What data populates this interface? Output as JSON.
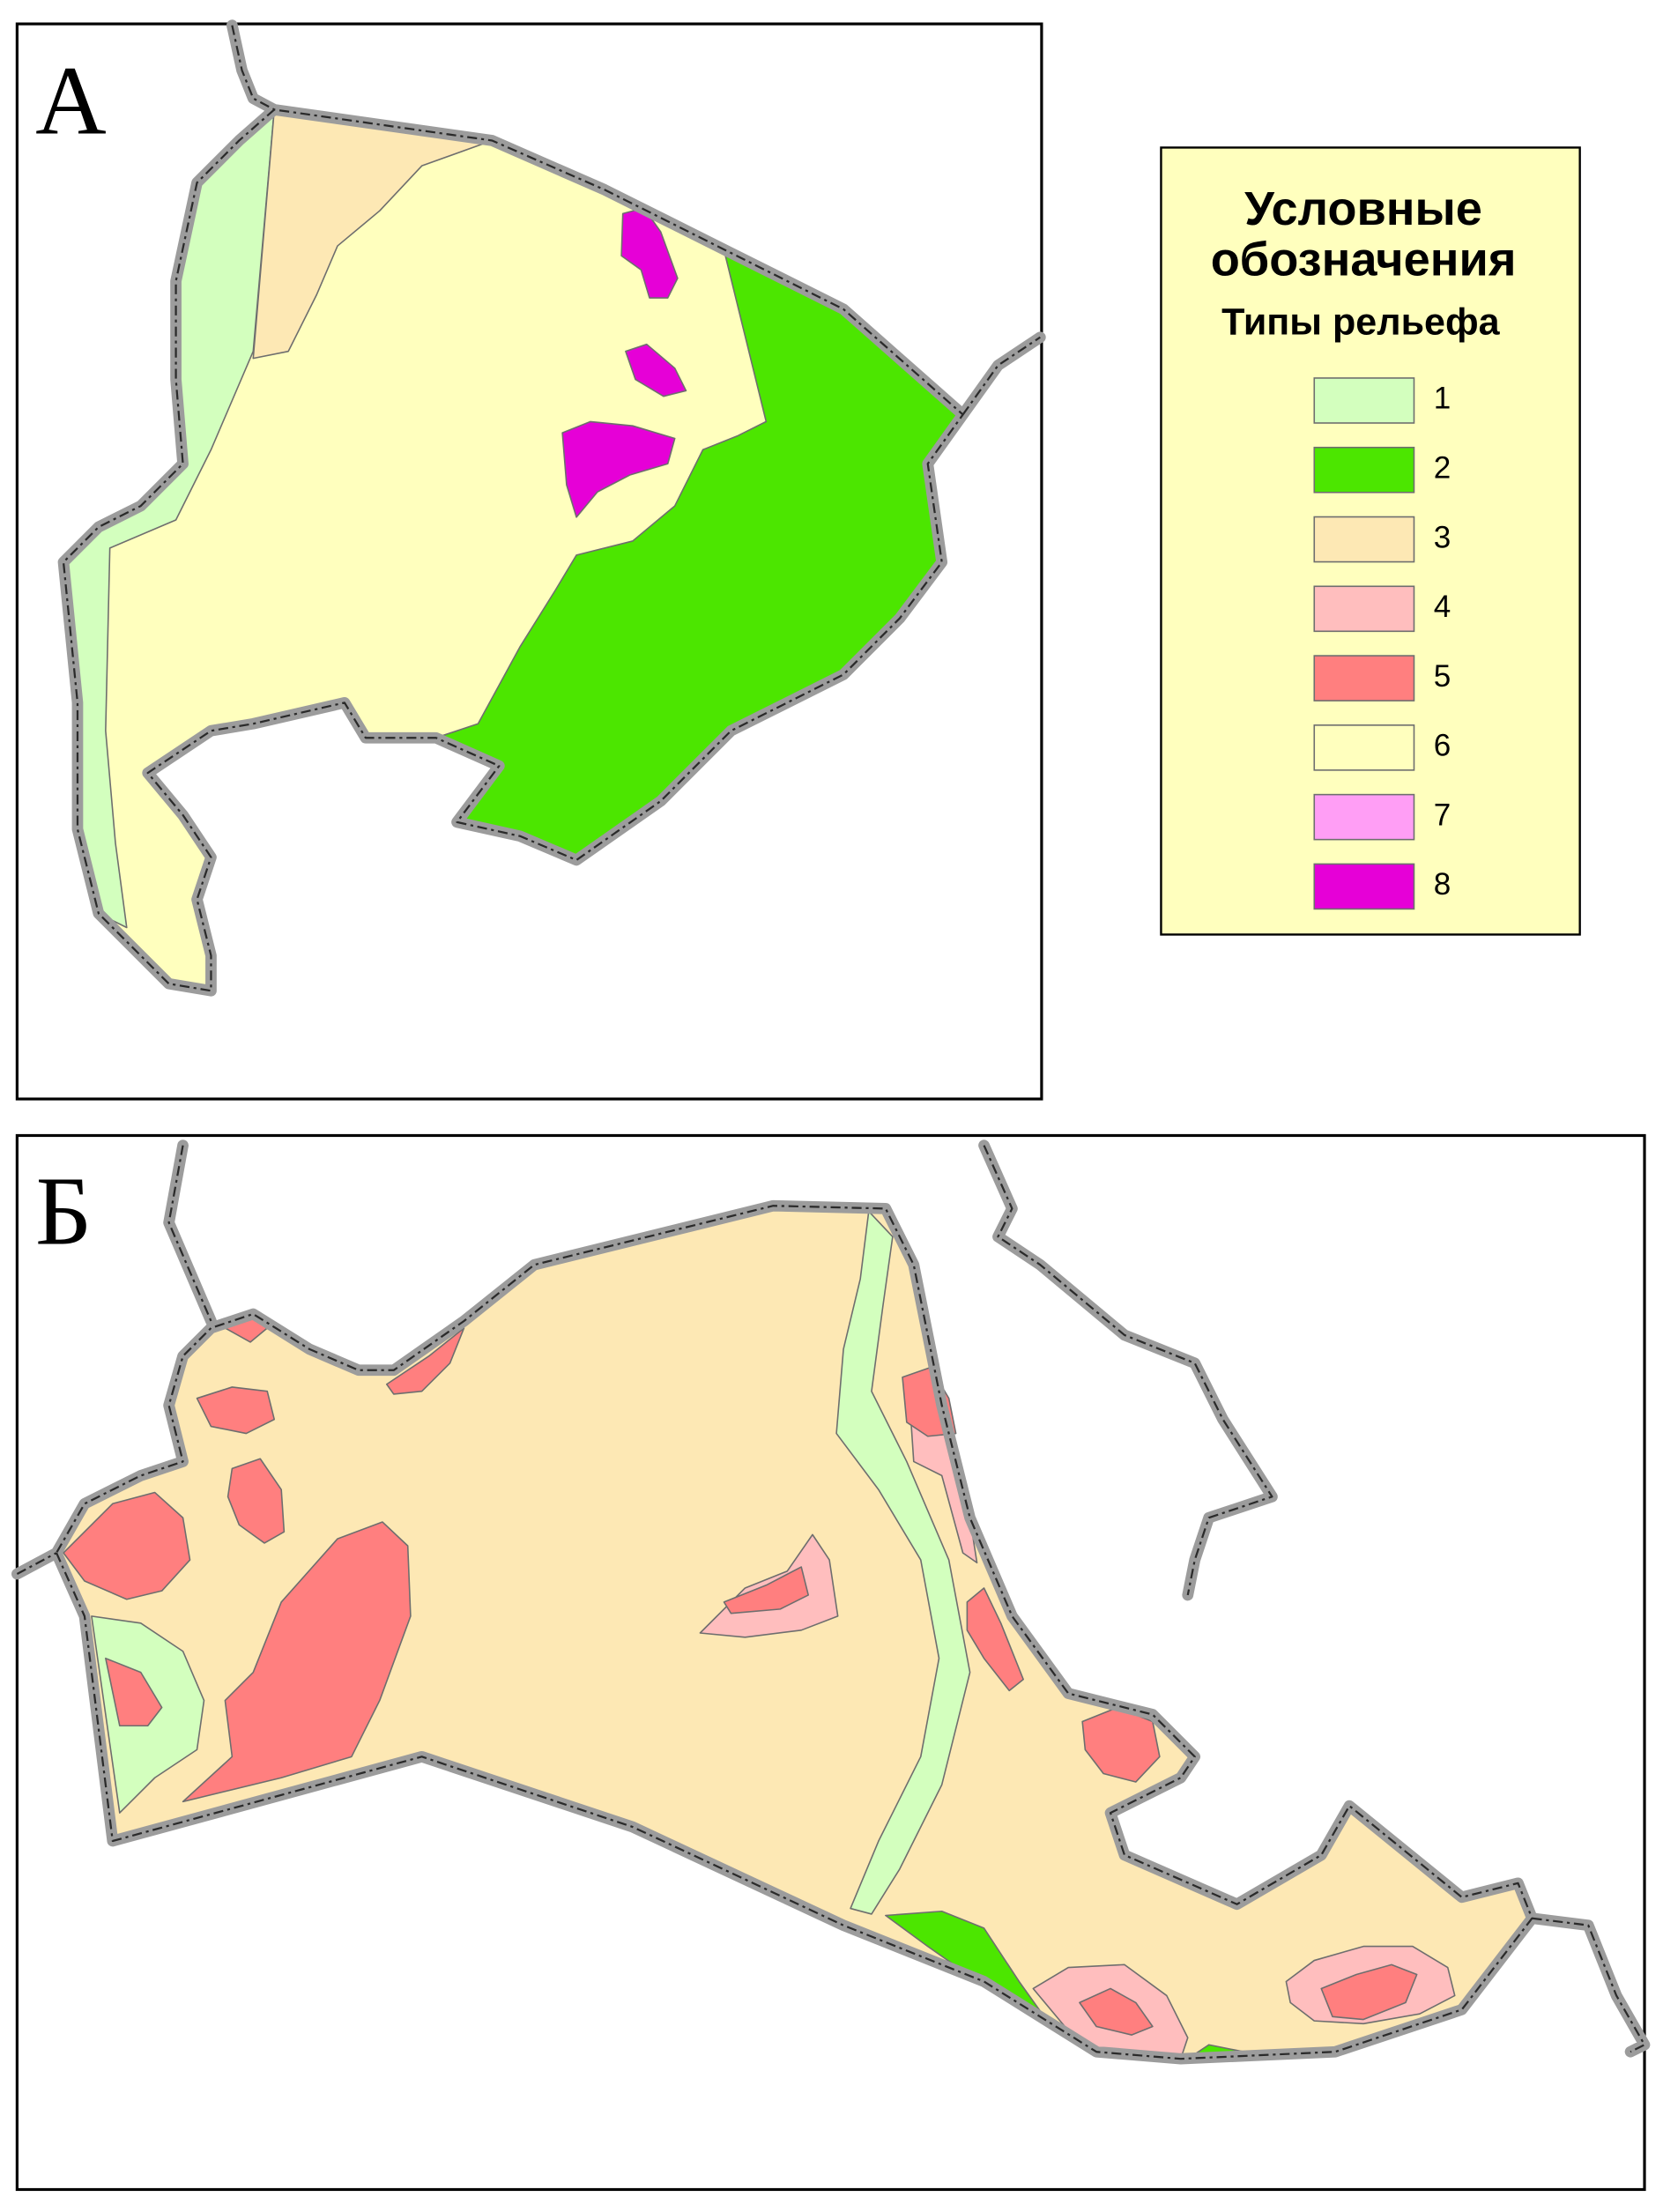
{
  "panels": [
    {
      "label": "А"
    },
    {
      "label": "Б"
    }
  ],
  "legend": {
    "title_lines": [
      "Условные",
      "обозначения"
    ],
    "subtitle": "Типы рельефа",
    "items": [
      {
        "label": "1",
        "color": "#d3ffbe"
      },
      {
        "label": "2",
        "color": "#4ce600"
      },
      {
        "label": "3",
        "color": "#fde8b4"
      },
      {
        "label": "4",
        "color": "#ffbebe"
      },
      {
        "label": "5",
        "color": "#ff7f7f"
      },
      {
        "label": "6",
        "color": "#ffffbe"
      },
      {
        "label": "7",
        "color": "#ff9ef5"
      },
      {
        "label": "8",
        "color": "#e600d7"
      }
    ]
  }
}
